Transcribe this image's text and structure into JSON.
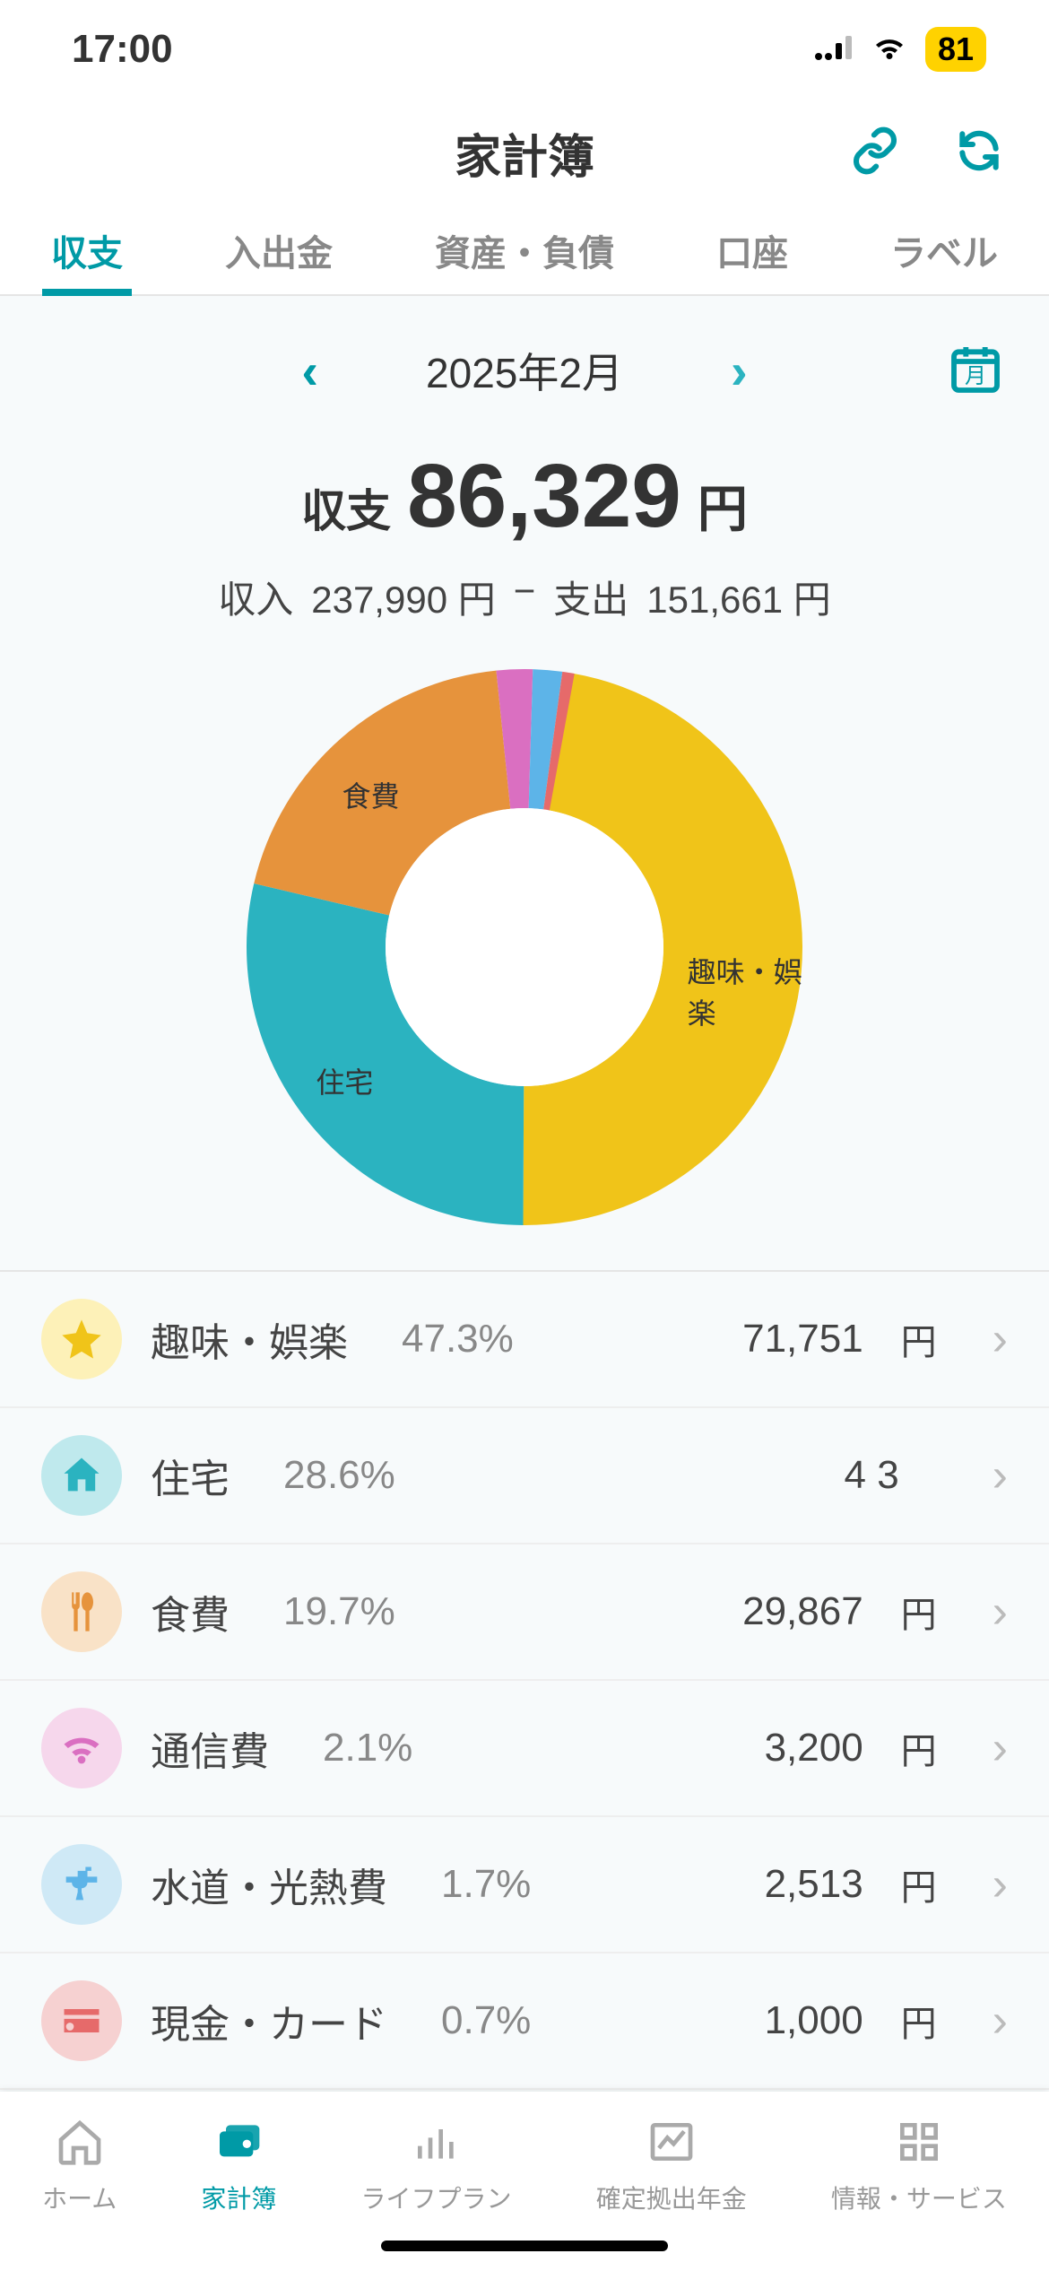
{
  "statusbar": {
    "time": "17:00",
    "battery_pct": "81"
  },
  "header": {
    "title": "家計簿"
  },
  "tabs": [
    {
      "label": "収支",
      "active": true
    },
    {
      "label": "入出金",
      "active": false
    },
    {
      "label": "資産・負債",
      "active": false
    },
    {
      "label": "口座",
      "active": false
    },
    {
      "label": "ラベル",
      "active": false
    }
  ],
  "month_nav": {
    "month": "2025年2月",
    "prev_color": "#009aa6",
    "next_color": "#2bb3c0"
  },
  "balance": {
    "label": "収支",
    "value": "86,329",
    "unit": "円",
    "income_label": "収入",
    "income": "237,990 円",
    "dash": "−",
    "expense_label": "支出",
    "expense": "151,661 円"
  },
  "donut_chart": {
    "type": "donut",
    "background": "#f7fafb",
    "hole_ratio": 0.5,
    "slices": [
      {
        "label": "趣味・娯楽",
        "pct": 47.3,
        "color": "#f0c419"
      },
      {
        "label": "住宅",
        "pct": 28.6,
        "color": "#2bb3c0"
      },
      {
        "label": "食費",
        "pct": 19.7,
        "color": "#e6933c"
      },
      {
        "label": "通信費",
        "pct": 2.1,
        "color": "#da6fc1"
      },
      {
        "label": "水道・光熱費",
        "pct": 1.7,
        "color": "#5db4e8"
      },
      {
        "label": "現金・カード",
        "pct": 0.7,
        "color": "#e66a6a"
      }
    ],
    "start_angle_deg": -80,
    "labels_on_chart": [
      "趣味・娯楽",
      "住宅",
      "食費"
    ],
    "label_fontsize": 32,
    "label_color": "#333333"
  },
  "categories": [
    {
      "icon": "star",
      "icon_bg": "#fdf1b8",
      "icon_fg": "#f0c419",
      "name": "趣味・娯楽",
      "pct": "47.3%",
      "amount": "71,751",
      "unit": "円"
    },
    {
      "icon": "home",
      "icon_bg": "#bfe9ed",
      "icon_fg": "#2bb3c0",
      "name": "住宅",
      "pct": "28.6%",
      "amount": "4                3",
      "unit": ""
    },
    {
      "icon": "fork",
      "icon_bg": "#f9e2c7",
      "icon_fg": "#e6933c",
      "name": "食費",
      "pct": "19.7%",
      "amount": "29,867",
      "unit": "円"
    },
    {
      "icon": "wifi",
      "icon_bg": "#f6d7ec",
      "icon_fg": "#da6fc1",
      "name": "通信費",
      "pct": "2.1%",
      "amount": "3,200",
      "unit": "円"
    },
    {
      "icon": "water",
      "icon_bg": "#cfe9f6",
      "icon_fg": "#5db4e8",
      "name": "水道・光熱費",
      "pct": "1.7%",
      "amount": "2,513",
      "unit": "円"
    },
    {
      "icon": "card",
      "icon_bg": "#f6d1d1",
      "icon_fg": "#e66a6a",
      "name": "現金・カード",
      "pct": "0.7%",
      "amount": "1,000",
      "unit": "円"
    }
  ],
  "bottom_nav": [
    {
      "label": "ホーム",
      "icon": "home",
      "active": false
    },
    {
      "label": "家計簿",
      "icon": "wallet",
      "active": true
    },
    {
      "label": "ライフプラン",
      "icon": "bars",
      "active": false
    },
    {
      "label": "確定拠出年金",
      "icon": "chart",
      "active": false
    },
    {
      "label": "情報・サービス",
      "icon": "grid",
      "active": false
    }
  ],
  "colors": {
    "accent": "#009aa6",
    "text": "#333333",
    "muted": "#888888",
    "bg": "#f7fafb",
    "divider": "#e5e5e5"
  }
}
